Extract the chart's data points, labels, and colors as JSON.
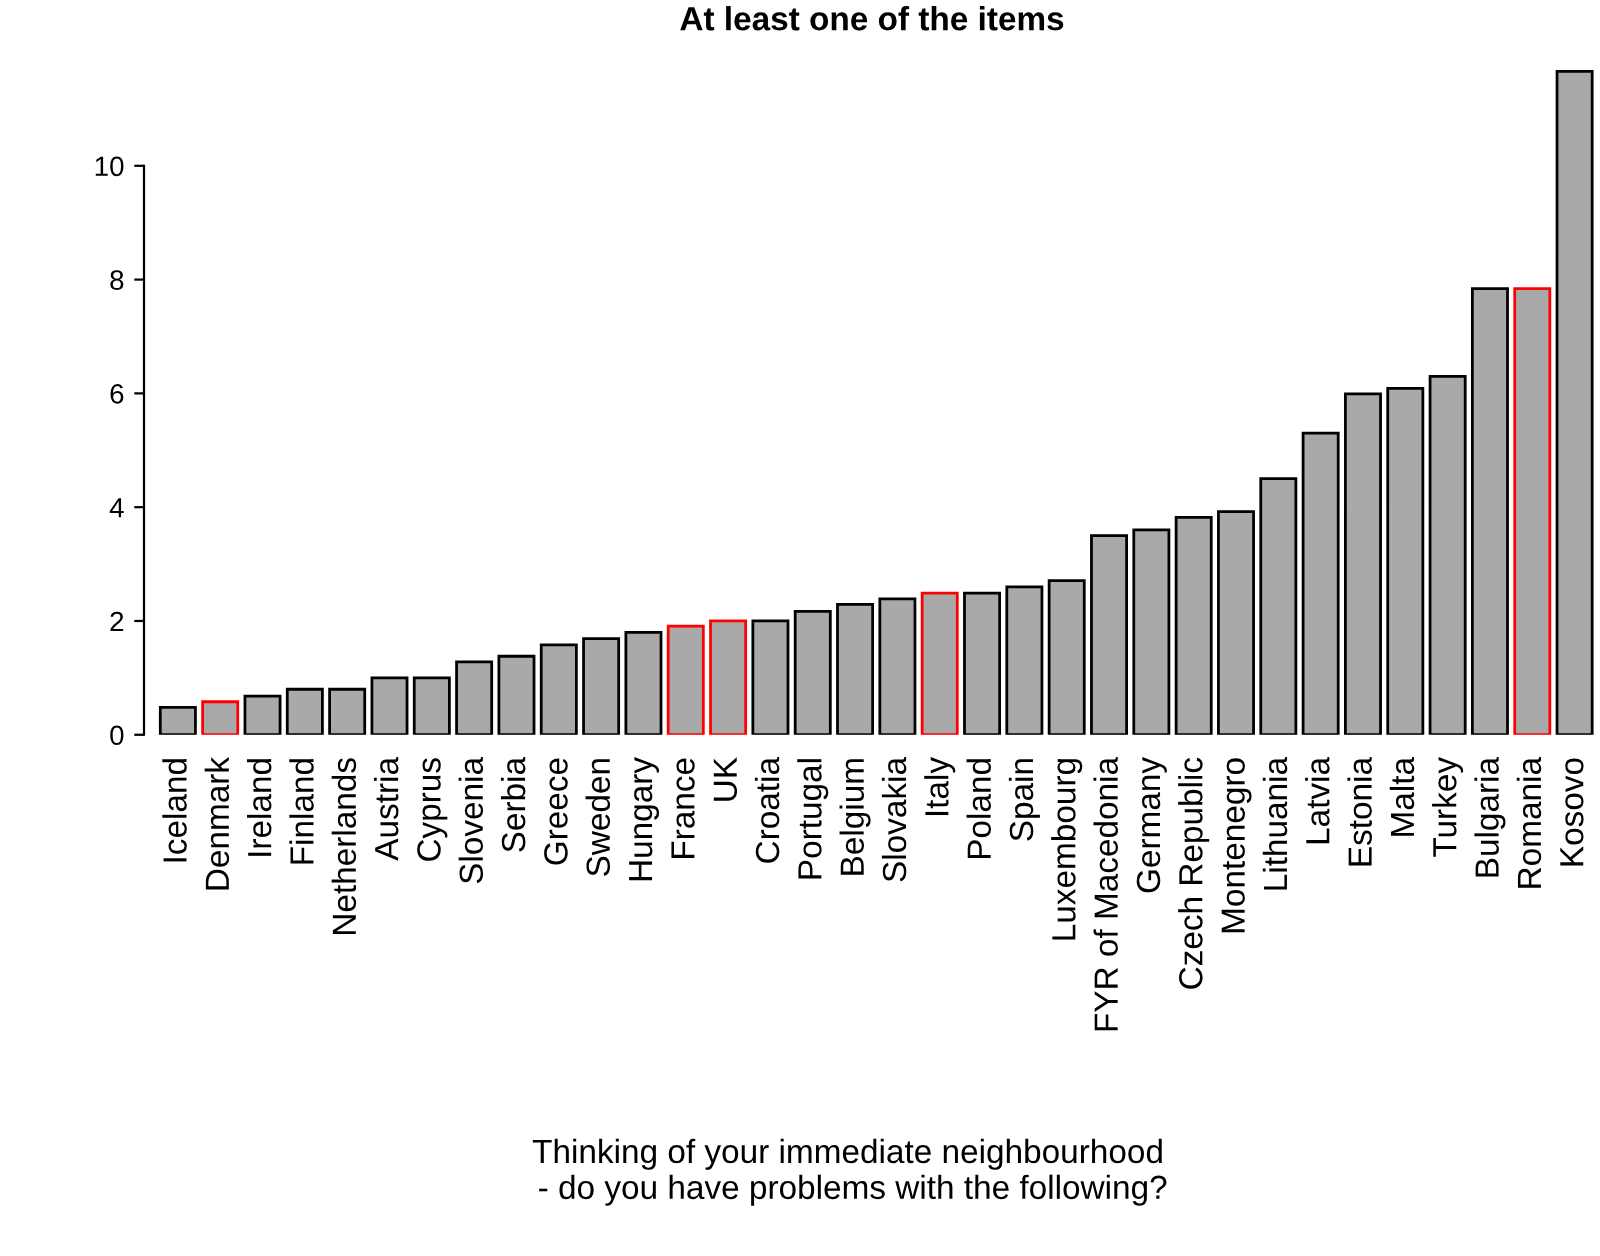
{
  "chart_data": {
    "type": "bar",
    "title": "At least one of the items",
    "xlabel": "Thinking of your immediate neighbourhood\n - do you have problems with the following?",
    "categories": [
      "Iceland",
      "Denmark",
      "Ireland",
      "Finland",
      "Netherlands",
      "Austria",
      "Cyprus",
      "Slovenia",
      "Serbia",
      "Greece",
      "Sweden",
      "Hungary",
      "France",
      "UK",
      "Croatia",
      "Portugal",
      "Belgium",
      "Slovakia",
      "Italy",
      "Poland",
      "Spain",
      "Luxembourg",
      "FYR of Macedonia",
      "Germany",
      "Czech Republic",
      "Montenegro",
      "Lithuania",
      "Latvia",
      "Estonia",
      "Malta",
      "Turkey",
      "Bulgaria",
      "Romania",
      "Kosovo"
    ],
    "values": [
      0.48,
      0.58,
      0.68,
      0.8,
      0.8,
      1.0,
      1.0,
      1.28,
      1.38,
      1.58,
      1.69,
      1.8,
      1.91,
      2.0,
      2.0,
      2.17,
      2.29,
      2.39,
      2.49,
      2.49,
      2.6,
      2.71,
      3.5,
      3.6,
      3.82,
      3.92,
      4.5,
      5.3,
      5.99,
      6.09,
      6.3,
      7.84,
      7.84,
      11.66
    ],
    "color": "#a9a9a9",
    "colors": [
      "#000000",
      "#ff0000",
      "#000000",
      "#000000",
      "#000000",
      "#000000",
      "#000000",
      "#000000",
      "#000000",
      "#000000",
      "#000000",
      "#000000",
      "#ff0000",
      "#ff0000",
      "#000000",
      "#000000",
      "#000000",
      "#000000",
      "#ff0000",
      "#000000",
      "#000000",
      "#000000",
      "#000000",
      "#000000",
      "#000000",
      "#000000",
      "#000000",
      "#000000",
      "#000000",
      "#000000",
      "#000000",
      "#000000",
      "#ff0000",
      "#000000"
    ],
    "ylim": [
      0,
      11.7
    ],
    "yticks": [
      0,
      2,
      4,
      6,
      8,
      10
    ],
    "grid": false,
    "legend": false
  }
}
